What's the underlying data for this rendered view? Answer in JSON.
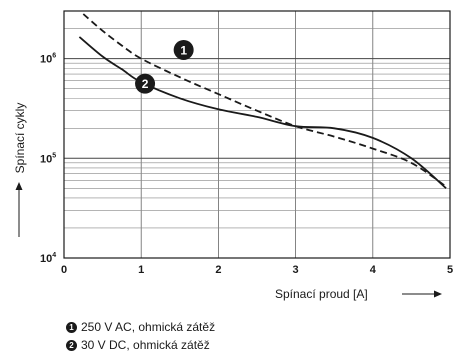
{
  "chart_data": {
    "type": "line",
    "xlabel": "Spínací proud [A]",
    "ylabel": "Spínací cykly",
    "xlim": [
      0,
      5
    ],
    "ylim": [
      10000,
      3000000
    ],
    "yscale": "log",
    "grid": true,
    "x_ticks": [
      "0",
      "1",
      "2",
      "3",
      "4",
      "5"
    ],
    "y_ticks": [
      {
        "value": 10000,
        "base": "10",
        "exp": "4"
      },
      {
        "value": 100000,
        "base": "10",
        "exp": "5"
      },
      {
        "value": 1000000,
        "base": "10",
        "exp": "6"
      }
    ],
    "series": [
      {
        "name": "250 V AC, ohmická zátěž",
        "marker": "1",
        "dash": "dashed",
        "x": [
          0.25,
          0.5,
          0.75,
          1.0,
          1.5,
          2.0,
          2.5,
          3.0,
          3.5,
          4.0,
          4.5,
          4.95
        ],
        "y": [
          2800000,
          1900000,
          1350000,
          1000000,
          650000,
          440000,
          300000,
          210000,
          165000,
          125000,
          90000,
          52000
        ]
      },
      {
        "name": "30 V DC, ohmická zátěž",
        "marker": "2",
        "dash": "solid",
        "x": [
          0.2,
          0.5,
          0.75,
          1.0,
          1.5,
          2.0,
          2.5,
          3.0,
          3.5,
          4.0,
          4.5,
          4.95
        ],
        "y": [
          1650000,
          1050000,
          780000,
          580000,
          400000,
          310000,
          260000,
          210000,
          200000,
          160000,
          100000,
          50000
        ]
      }
    ]
  },
  "legend": [
    {
      "marker": "1",
      "label": "250 V AC, ohmická zátěž"
    },
    {
      "marker": "2",
      "label": "30 V DC, ohmická zátěž"
    }
  ]
}
